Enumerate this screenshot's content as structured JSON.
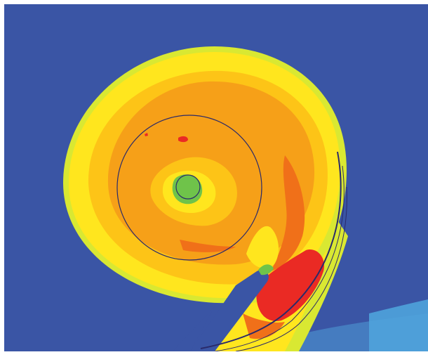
{
  "image": {
    "subject": "volute-flow-contour",
    "colors": {
      "background": "#3a55a5",
      "deep_blue": "#3a55a5",
      "light_blue": "#4fa3dc",
      "green": "#6fc34a",
      "yellow_green": "#d9e832",
      "yellow": "#ffe61e",
      "light_orange": "#fdc417",
      "orange": "#f6a018",
      "dark_orange": "#f07019",
      "red": "#ea2a24",
      "outline": "#2a2a6a"
    }
  }
}
